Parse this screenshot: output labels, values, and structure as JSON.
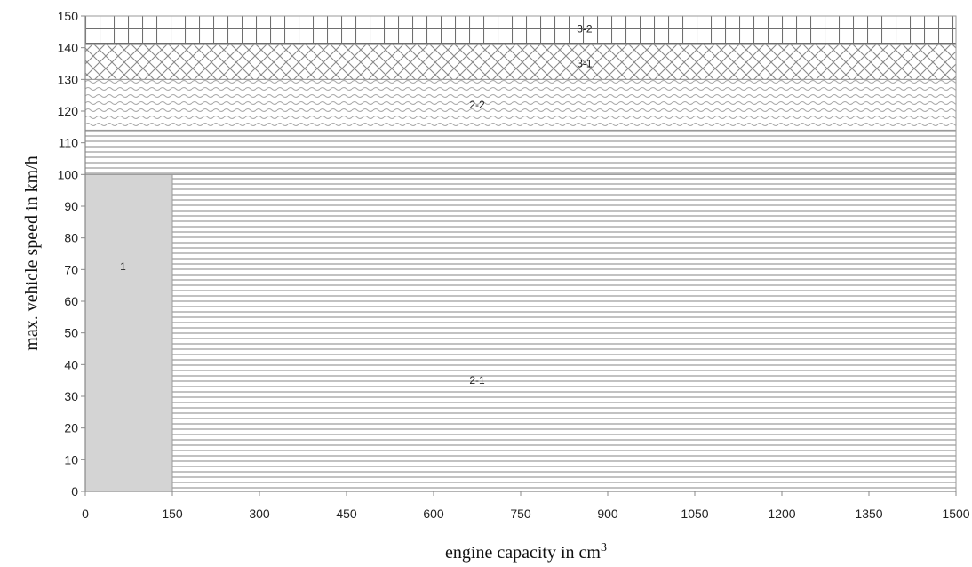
{
  "chart_data": {
    "type": "area",
    "xlabel": "engine capacity in cm",
    "xlabel_superscript": "3",
    "ylabel": "max. vehicle speed in km/h",
    "xlim": [
      0,
      1500
    ],
    "ylim": [
      0,
      150
    ],
    "x_ticks": [
      "0",
      "150",
      "300",
      "450",
      "600",
      "750",
      "900",
      "1050",
      "1200",
      "1350",
      "1500"
    ],
    "y_ticks": [
      "0",
      "10",
      "20",
      "30",
      "40",
      "50",
      "60",
      "70",
      "80",
      "90",
      "100",
      "110",
      "120",
      "130",
      "140",
      "150"
    ],
    "regions": [
      {
        "label": "1",
        "x": [
          0,
          150
        ],
        "y": [
          0,
          100
        ],
        "pattern": "solid-gray"
      },
      {
        "label": "2-1",
        "x": [
          150,
          1500
        ],
        "y": [
          0,
          100
        ],
        "pattern": "horizontal-lines"
      },
      {
        "label": "2-1",
        "x": [
          0,
          1500
        ],
        "y": [
          100,
          114
        ],
        "pattern": "horizontal-lines"
      },
      {
        "label": "2-2",
        "x": [
          0,
          1500
        ],
        "y": [
          114,
          130
        ],
        "pattern": "wave"
      },
      {
        "label": "3-1",
        "x": [
          0,
          1500
        ],
        "y": [
          130,
          141
        ],
        "pattern": "crosshatch"
      },
      {
        "label": "3-2",
        "x": [
          0,
          1500
        ],
        "y": [
          141,
          150
        ],
        "pattern": "grid"
      }
    ],
    "labels": [
      {
        "text": "1",
        "x": 65,
        "y": 71
      },
      {
        "text": "2-1",
        "x": 675,
        "y": 35
      },
      {
        "text": "2-2",
        "x": 675,
        "y": 122
      },
      {
        "text": "3-1",
        "x": 860,
        "y": 135
      },
      {
        "text": "3-2",
        "x": 860,
        "y": 146
      }
    ],
    "grid": false
  }
}
